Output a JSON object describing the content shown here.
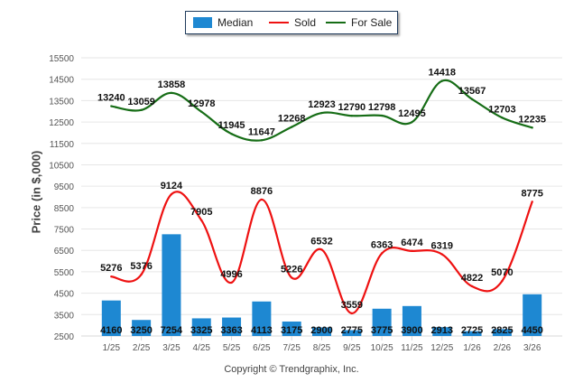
{
  "chart_data": {
    "type": "bar",
    "title": "",
    "xlabel": "",
    "ylabel": "Price (in $,000)",
    "ylim": [
      2500,
      15500
    ],
    "ytick_step": 1000,
    "yticks": [
      "2500",
      "3500",
      "4500",
      "5500",
      "6500",
      "7500",
      "8500",
      "9500",
      "10500",
      "11500",
      "12500",
      "13500",
      "14500",
      "15500"
    ],
    "grid": true,
    "legend_position": "top-center",
    "categories": [
      "1/25",
      "2/25",
      "3/25",
      "4/25",
      "5/25",
      "6/25",
      "7/25",
      "8/25",
      "9/25",
      "10/25",
      "11/25",
      "12/25",
      "1/26",
      "2/26",
      "3/26"
    ],
    "series": [
      {
        "name": "Median",
        "kind": "bar",
        "color": "#1e88d2",
        "values": [
          4160,
          3250,
          7254,
          3325,
          3363,
          4113,
          3175,
          2900,
          2775,
          3775,
          3900,
          2913,
          2725,
          2825,
          4450
        ]
      },
      {
        "name": "Sold",
        "kind": "line",
        "color": "#ee1111",
        "values": [
          5276,
          5376,
          9124,
          7905,
          4996,
          8876,
          5226,
          6532,
          3559,
          6363,
          6474,
          6319,
          4822,
          5070,
          8775
        ]
      },
      {
        "name": "For Sale",
        "kind": "line",
        "color": "#166d16",
        "values": [
          13240,
          13059,
          13858,
          12978,
          11945,
          11647,
          12268,
          12923,
          12790,
          12798,
          12495,
          14418,
          13567,
          12703,
          12235
        ]
      }
    ],
    "footer": "Copyright © Trendgraphix, Inc."
  },
  "legend": {
    "median": "Median",
    "sold": "Sold",
    "for_sale": "For Sale"
  },
  "axis": {
    "ylabel": "Price (in $,000)"
  },
  "footer": {
    "copyright": "Copyright © Trendgraphix, Inc."
  }
}
